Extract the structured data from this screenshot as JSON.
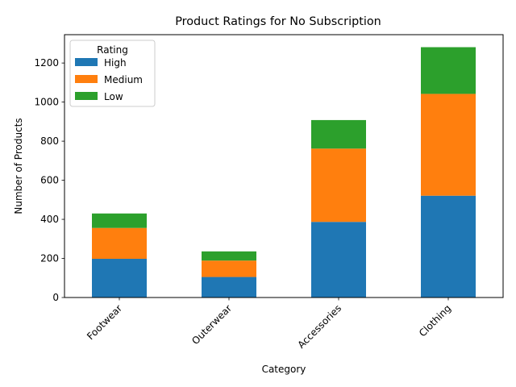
{
  "chart_data": {
    "type": "bar",
    "stacked": true,
    "title": "Product Ratings for No Subscription",
    "xlabel": "Category",
    "ylabel": "Number of Products",
    "categories": [
      "Footwear",
      "Outerwear",
      "Accessories",
      "Clothing"
    ],
    "series": [
      {
        "name": "High",
        "color": "#1f77b4",
        "values": [
          198,
          105,
          387,
          521
        ]
      },
      {
        "name": "Medium",
        "color": "#ff7f0e",
        "values": [
          158,
          84,
          375,
          521
        ]
      },
      {
        "name": "Low",
        "color": "#2ca02c",
        "values": [
          74,
          47,
          146,
          239
        ]
      }
    ],
    "ylim": [
      0,
      1345
    ],
    "yticks": [
      0,
      200,
      400,
      600,
      800,
      1000,
      1200
    ],
    "legend": {
      "title": "Rating",
      "placement": "top-left"
    },
    "grid": false
  }
}
